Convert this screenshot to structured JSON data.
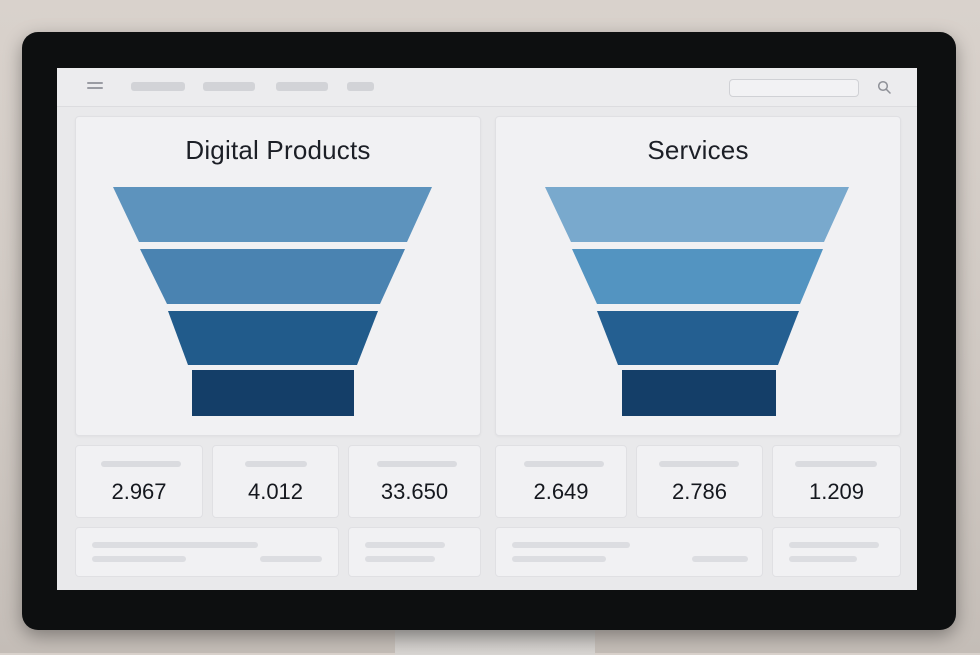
{
  "colors": {
    "funnel_digital": [
      "#5d93bd",
      "#4a83b1",
      "#215b8b",
      "#143e68"
    ],
    "funnel_services": [
      "#79a9cd",
      "#5394c1",
      "#245f91",
      "#143e68"
    ]
  },
  "header": {
    "menu_icon": "hamburger-icon",
    "search_icon": "search-icon"
  },
  "panels": [
    {
      "title": "Digital Products"
    },
    {
      "title": "Services"
    }
  ],
  "stats": [
    {
      "value": "2.967"
    },
    {
      "value": "4.012"
    },
    {
      "value": "33.650"
    },
    {
      "value": "2.649"
    },
    {
      "value": "2.786"
    },
    {
      "value": "1.209"
    }
  ],
  "chart_data": [
    {
      "type": "funnel",
      "title": "Digital Products",
      "stages": 4
    },
    {
      "type": "funnel",
      "title": "Services",
      "stages": 4
    }
  ]
}
